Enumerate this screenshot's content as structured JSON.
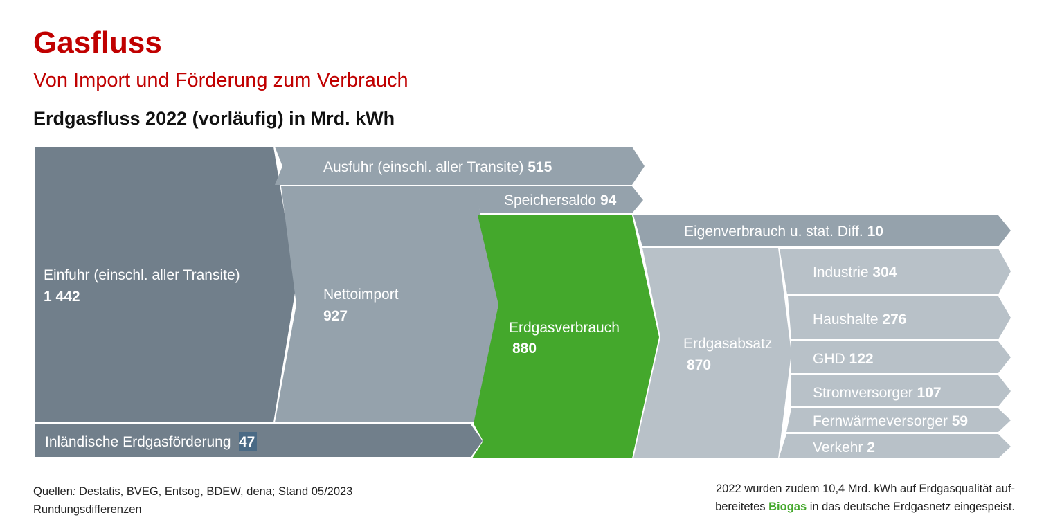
{
  "title": "Gasfluss",
  "subtitle": "Von Import und Förderung zum Verbrauch",
  "heading": "Erdgasfluss 2022 (vorläufig) in Mrd. kWh",
  "colors": {
    "title_red": "#c00000",
    "dark_slate": "#717f8b",
    "mid_slate": "#95a2ac",
    "light_slate": "#b8c1c8",
    "green": "#44a82c",
    "highlight": "#4a6a85"
  },
  "nodes": {
    "einfuhr": {
      "label": "Einfuhr (einschl. aller Transite)",
      "value": "1 442"
    },
    "ausfuhr": {
      "label": "Ausfuhr (einschl. aller Transite)",
      "value": "515"
    },
    "nettoimport": {
      "label": "Nettoimport",
      "value": "927"
    },
    "speichersaldo": {
      "label": "Speichersaldo",
      "value": "94"
    },
    "foerderung": {
      "label": "Inländische Erdgasförderung",
      "value": "47"
    },
    "verbrauch": {
      "label": "Erdgasverbrauch",
      "value": "880"
    },
    "eigenverbrauch": {
      "label": "Eigenverbrauch u. stat. Diff.",
      "value": "10"
    },
    "absatz": {
      "label": "Erdgasabsatz",
      "value": "870"
    },
    "industrie": {
      "label": "Industrie",
      "value": "304"
    },
    "haushalte": {
      "label": "Haushalte",
      "value": "276"
    },
    "ghd": {
      "label": "GHD",
      "value": "122"
    },
    "stromversorger": {
      "label": "Stromversorger",
      "value": "107"
    },
    "fernwaerme": {
      "label": "Fernwärmeversorger",
      "value": "59"
    },
    "verkehr": {
      "label": "Verkehr",
      "value": "2"
    }
  },
  "footer": {
    "sources_prefix": "Quellen",
    "sources_sep": ":",
    "sources": " Destatis, BVEG, Entsog, BDEW, dena; Stand 05/2023",
    "rounding": "Rundungsdifferenzen",
    "note_line1": "2022 wurden zudem 10,4 Mrd. kWh auf Erdgasqualität auf-",
    "note_line2_pre": "bereitetes ",
    "note_biogas": "Biogas",
    "note_line2_post": " in das deutsche Erdgasnetz eingespeist."
  }
}
